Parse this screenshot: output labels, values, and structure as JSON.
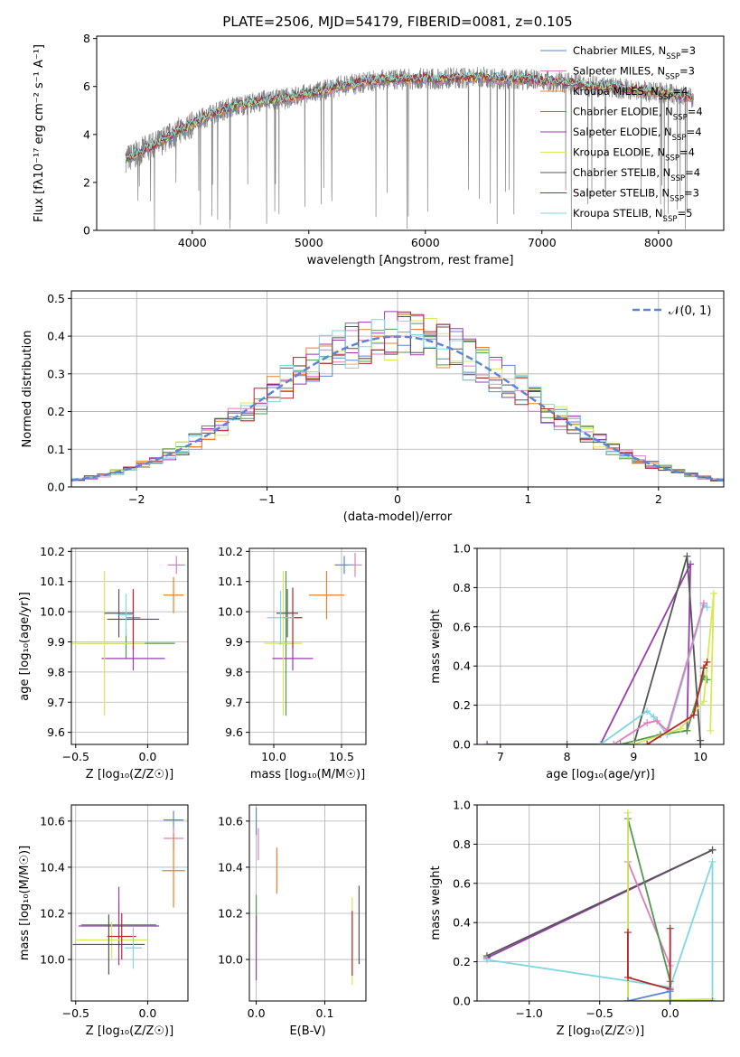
{
  "figure": {
    "title": "PLATE=2506, MJD=54179, FIBERID=0081, z=0.105"
  },
  "models": [
    {
      "name": "Chabrier MILES",
      "nssp": "3",
      "color": "#5b86d6"
    },
    {
      "name": "Salpeter MILES",
      "nssp": "3",
      "color": "#e07dbf"
    },
    {
      "name": "Kroupa MILES",
      "nssp": "4",
      "color": "#e8802a"
    },
    {
      "name": "Chabrier ELODIE",
      "nssp": "4",
      "color": "#4f9a4f"
    },
    {
      "name": "Salpeter ELODIE",
      "nssp": "4",
      "color": "#9b3bb0"
    },
    {
      "name": "Kroupa ELODIE",
      "nssp": "4",
      "color": "#d8e85a"
    },
    {
      "name": "Chabrier STELIB",
      "nssp": "4",
      "color": "#555555"
    },
    {
      "name": "Salpeter STELIB",
      "nssp": "3",
      "color": "#b5272a"
    },
    {
      "name": "Kroupa STELIB",
      "nssp": "5",
      "color": "#7fd7e0"
    }
  ],
  "chart_data": [
    {
      "id": "spectrum",
      "type": "line",
      "xlabel": "wavelength [Angstrom, rest frame]",
      "ylabel": "Flux [fλ10⁻¹⁷ erg cm⁻² s⁻¹ A⁻¹]",
      "xlim": [
        3180,
        8560
      ],
      "ylim": [
        0,
        8.1
      ],
      "xticks": [
        4000,
        5000,
        6000,
        7000,
        8000
      ],
      "yticks": [
        0,
        2,
        4,
        6,
        8
      ],
      "legend": "top-right",
      "data_color": "#808080",
      "continuum": {
        "x": [
          3430,
          3500,
          3600,
          3700,
          3800,
          3900,
          4000,
          4100,
          4200,
          4300,
          4400,
          4500,
          4600,
          4700,
          4800,
          4900,
          5000,
          5100,
          5200,
          5300,
          5400,
          5500,
          5600,
          5700,
          5800,
          5900,
          6000,
          6100,
          6200,
          6300,
          6400,
          6500,
          6600,
          6700,
          6800,
          6900,
          7000,
          7100,
          7200,
          7300,
          7400,
          7500,
          7600,
          7700,
          7800,
          7900,
          8000,
          8100,
          8200,
          8300
        ],
        "y": [
          3.0,
          3.1,
          3.4,
          3.6,
          3.9,
          4.2,
          4.4,
          4.7,
          4.9,
          5.1,
          5.2,
          5.3,
          5.4,
          5.45,
          5.5,
          5.6,
          5.7,
          5.8,
          5.95,
          6.05,
          6.1,
          6.2,
          6.25,
          6.3,
          6.3,
          6.3,
          6.35,
          6.3,
          6.35,
          6.35,
          6.35,
          6.4,
          6.35,
          6.3,
          6.3,
          6.3,
          6.25,
          6.2,
          6.15,
          6.1,
          6.0,
          6.05,
          5.95,
          5.9,
          5.85,
          5.8,
          5.75,
          5.7,
          5.6,
          5.5
        ]
      }
    },
    {
      "id": "residuals",
      "type": "histogram",
      "xlabel": "(data-model)/error",
      "ylabel": "Normed distribution",
      "xlim": [
        -2.5,
        2.5
      ],
      "ylim": [
        0,
        0.52
      ],
      "xticks": [
        -2,
        -1,
        0,
        1,
        2
      ],
      "yticks": [
        0,
        0.1,
        0.2,
        0.3,
        0.4,
        0.5
      ],
      "gaussian_label": "𝒩(0, 1)",
      "gaussian_color": "#5b86d6",
      "legend": "top-right",
      "bin_width": 0.1
    },
    {
      "id": "age_vs_Z",
      "type": "errorbar",
      "xlabel": "Z [log₁₀(Z/Z☉)]",
      "ylabel": "age  [log₁₀(age/yr)]",
      "xlim": [
        -0.53,
        0.28
      ],
      "ylim": [
        9.56,
        10.21
      ],
      "xticks": [
        -0.5,
        0.0
      ],
      "yticks": [
        9.6,
        9.7,
        9.8,
        9.9,
        10.0,
        10.1,
        10.2
      ],
      "points": [
        {
          "x": -0.1,
          "y": 9.98,
          "xerr": 0.05,
          "yerr": 0.08
        },
        {
          "x": 0.2,
          "y": 10.155,
          "xerr": 0.06,
          "yerr": 0.03
        },
        {
          "x": 0.18,
          "y": 10.055,
          "xerr": 0.07,
          "yerr": 0.06
        },
        {
          "x": -0.15,
          "y": 9.895,
          "xerr": 0.34,
          "yerr": 0.05
        },
        {
          "x": -0.1,
          "y": 9.845,
          "xerr": 0.22,
          "yerr": 0.04
        },
        {
          "x": -0.3,
          "y": 9.895,
          "xerr": 0.28,
          "yerr": 0.24
        },
        {
          "x": -0.2,
          "y": 9.995,
          "xerr": 0.1,
          "yerr": 0.08
        },
        {
          "x": -0.1,
          "y": 9.975,
          "xerr": 0.18,
          "yerr": 0.1
        },
        {
          "x": -0.15,
          "y": 9.99,
          "xerr": 0.05,
          "yerr": 0.07
        }
      ]
    },
    {
      "id": "age_vs_mass",
      "type": "errorbar",
      "xlabel": "mass [log₁₀(M/M☉)]",
      "ylabel": "",
      "xlim": [
        9.82,
        10.68
      ],
      "ylim": [
        9.56,
        10.21
      ],
      "xticks": [
        10.0,
        10.5
      ],
      "yticks": [
        9.6,
        9.7,
        9.8,
        9.9,
        10.0,
        10.1,
        10.2
      ],
      "points": [
        {
          "x": 10.52,
          "y": 10.155,
          "xerr": 0.07,
          "yerr": 0.03
        },
        {
          "x": 10.6,
          "y": 10.155,
          "xerr": 0.05,
          "yerr": 0.04
        },
        {
          "x": 10.39,
          "y": 10.055,
          "xerr": 0.13,
          "yerr": 0.08
        },
        {
          "x": 10.09,
          "y": 9.895,
          "xerr": 0.06,
          "yerr": 0.24
        },
        {
          "x": 10.14,
          "y": 9.845,
          "xerr": 0.15,
          "yerr": 0.04
        },
        {
          "x": 10.07,
          "y": 9.895,
          "xerr": 0.14,
          "yerr": 0.24
        },
        {
          "x": 10.1,
          "y": 9.995,
          "xerr": 0.08,
          "yerr": 0.08
        },
        {
          "x": 10.14,
          "y": 9.98,
          "xerr": 0.07,
          "yerr": 0.1
        },
        {
          "x": 10.05,
          "y": 9.98,
          "xerr": 0.1,
          "yerr": 0.09
        }
      ]
    },
    {
      "id": "weight_vs_age",
      "type": "line",
      "xlabel": "age  [log₁₀(age/yr)]",
      "ylabel": "mass weight",
      "xlim": [
        6.65,
        10.35
      ],
      "ylim": [
        0,
        1.0
      ],
      "xticks": [
        7,
        8,
        9,
        10
      ],
      "yticks": [
        0,
        0.2,
        0.4,
        0.6,
        0.8,
        1.0
      ],
      "series": [
        {
          "x": [
            6.8,
            8.5,
            9.85,
            9.8
          ],
          "y": [
            0.0,
            0.0,
            0.92,
            0.07
          ]
        },
        {
          "x": [
            8.0,
            9.0,
            9.8,
            10.0,
            10.0
          ],
          "y": [
            0.0,
            0.0,
            0.96,
            0.0,
            0.02
          ]
        },
        {
          "x": [
            8.5,
            9.2,
            9.3,
            9.5,
            10.05,
            10.1
          ],
          "y": [
            0.0,
            0.17,
            0.14,
            0.05,
            0.71,
            0.7
          ]
        },
        {
          "x": [
            8.7,
            9.2,
            9.35,
            9.5,
            10.05
          ],
          "y": [
            0.0,
            0.11,
            0.12,
            0.07,
            0.72
          ]
        },
        {
          "x": [
            8.8,
            9.4,
            9.8,
            10.05,
            10.1
          ],
          "y": [
            0.0,
            0.05,
            0.07,
            0.35,
            0.33
          ]
        },
        {
          "x": [
            9.0,
            9.7,
            10.05,
            10.2,
            10.15
          ],
          "y": [
            0.0,
            0.08,
            0.22,
            0.77,
            0.07
          ]
        },
        {
          "x": [
            9.2,
            9.9,
            10.05,
            10.1
          ],
          "y": [
            0.0,
            0.15,
            0.39,
            0.42
          ]
        }
      ]
    },
    {
      "id": "mass_vs_Z",
      "type": "errorbar",
      "xlabel": "Z [log₁₀(Z/Z☉)]",
      "ylabel": "mass [log₁₀(M/M☉)]",
      "xlim": [
        -0.53,
        0.28
      ],
      "ylim": [
        9.82,
        10.67
      ],
      "xticks": [
        -0.5,
        0.0
      ],
      "yticks": [
        10.0,
        10.2,
        10.4,
        10.6
      ],
      "points": [
        {
          "x": 0.18,
          "y": 10.605,
          "xerr": 0.07,
          "yerr": 0.04
        },
        {
          "x": 0.18,
          "y": 10.525,
          "xerr": 0.07,
          "yerr": 0.05
        },
        {
          "x": 0.18,
          "y": 10.385,
          "xerr": 0.08,
          "yerr": 0.16
        },
        {
          "x": -0.2,
          "y": 10.15,
          "xerr": 0.26,
          "yerr": 0.1
        },
        {
          "x": -0.2,
          "y": 10.145,
          "xerr": 0.28,
          "yerr": 0.17
        },
        {
          "x": -0.25,
          "y": 10.085,
          "xerr": 0.25,
          "yerr": 0.08
        },
        {
          "x": -0.27,
          "y": 10.065,
          "xerr": 0.25,
          "yerr": 0.13
        },
        {
          "x": -0.18,
          "y": 10.1,
          "xerr": 0.1,
          "yerr": 0.1
        },
        {
          "x": -0.1,
          "y": 10.05,
          "xerr": 0.06,
          "yerr": 0.09
        }
      ]
    },
    {
      "id": "mass_vs_ebv",
      "type": "errorbar",
      "xlabel": "E(B-V)",
      "ylabel": "",
      "xlim": [
        -0.01,
        0.16
      ],
      "ylim": [
        9.82,
        10.67
      ],
      "xticks": [
        0.0,
        0.1
      ],
      "yticks": [
        10.0,
        10.2,
        10.4,
        10.6
      ],
      "points": [
        {
          "x": 0.0,
          "y": 10.6,
          "xerr": 0,
          "yerr": 0.06
        },
        {
          "x": 0.003,
          "y": 10.5,
          "xerr": 0,
          "yerr": 0.07
        },
        {
          "x": 0.03,
          "y": 10.385,
          "xerr": 0,
          "yerr": 0.1
        },
        {
          "x": 0.0,
          "y": 10.2,
          "xerr": 0,
          "yerr": 0.08
        },
        {
          "x": 0.0,
          "y": 10.05,
          "xerr": 0,
          "yerr": 0.14
        },
        {
          "x": 0.14,
          "y": 10.08,
          "xerr": 0,
          "yerr": 0.19
        },
        {
          "x": 0.15,
          "y": 10.15,
          "xerr": 0,
          "yerr": 0.17
        },
        {
          "x": 0.14,
          "y": 10.07,
          "xerr": 0,
          "yerr": 0.14
        }
      ]
    },
    {
      "id": "weight_vs_Z",
      "type": "line",
      "xlabel": "Z [log₁₀(Z/Z☉)]",
      "ylabel": "mass weight",
      "xlim": [
        -1.37,
        0.38
      ],
      "ylim": [
        0,
        1.0
      ],
      "xticks": [
        -1.0,
        -0.5,
        0.0
      ],
      "yticks": [
        0,
        0.2,
        0.4,
        0.6,
        0.8,
        1.0
      ],
      "series": [
        {
          "x": [
            -1.3,
            0.3
          ],
          "y": [
            0.22,
            0.77
          ]
        },
        {
          "x": [
            -1.3,
            0.3
          ],
          "y": [
            0.23,
            0.77
          ]
        },
        {
          "x": [
            -1.3,
            0.0,
            0.3,
            0.3
          ],
          "y": [
            0.21,
            0.07,
            0.71,
            0.0
          ]
        },
        {
          "x": [
            -0.3,
            -0.3,
            0.0,
            0.0
          ],
          "y": [
            0.0,
            0.71,
            0.18,
            0.0
          ]
        },
        {
          "x": [
            -0.3,
            -0.3,
            0.0,
            0.0
          ],
          "y": [
            0.0,
            0.93,
            0.1,
            0.0
          ]
        },
        {
          "x": [
            -0.3,
            -0.3,
            0.3
          ],
          "y": [
            0.96,
            0.0,
            0.01
          ]
        },
        {
          "x": [
            -0.3,
            -0.3,
            0.0,
            0.0
          ],
          "y": [
            0.35,
            0.12,
            0.06,
            0.37
          ]
        },
        {
          "x": [
            -0.3,
            0.0,
            0.0,
            0.3
          ],
          "y": [
            0.0,
            0.05,
            0.0,
            0.0
          ]
        }
      ]
    }
  ]
}
